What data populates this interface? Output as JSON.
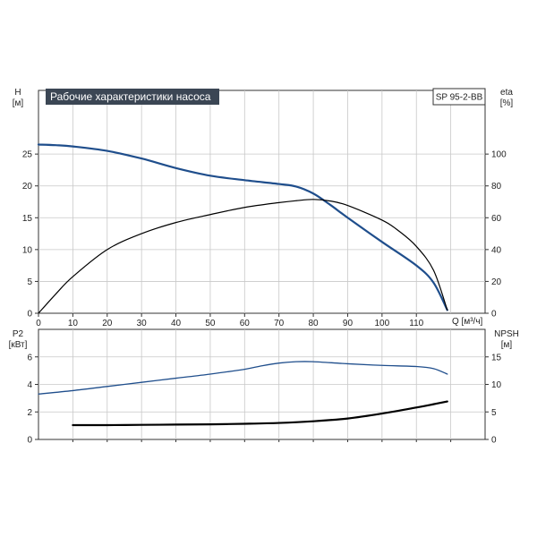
{
  "chart_data": [
    {
      "type": "line",
      "title": "Рабочие характеристики насоса",
      "model": "SP 95-2-BB",
      "x_label": "Q [м³/ч]",
      "x_ticks": [
        "0",
        "10",
        "20",
        "30",
        "40",
        "50",
        "60",
        "70",
        "80",
        "90",
        "100",
        "110"
      ],
      "xlim": [
        0,
        130
      ],
      "y_left_label": "H",
      "y_left_unit": "[м]",
      "y_left_ticks": [
        "0",
        "5",
        "10",
        "15",
        "20",
        "25"
      ],
      "y_left_lim": [
        0,
        35
      ],
      "y_right_label": "eta",
      "y_right_unit": "[%]",
      "y_right_ticks": [
        "0",
        "20",
        "40",
        "60",
        "80",
        "100"
      ],
      "y_right_lim": [
        0,
        140
      ],
      "grid": true,
      "series": [
        {
          "axis": "left",
          "color": "#1f4e8c",
          "x": [
            0,
            5,
            10,
            20,
            30,
            40,
            50,
            60,
            70,
            75,
            80,
            85,
            90,
            100,
            110,
            115,
            119
          ],
          "y": [
            26.5,
            26.4,
            26.2,
            25.5,
            24.3,
            22.8,
            21.6,
            20.9,
            20.3,
            19.9,
            18.8,
            17.0,
            15.0,
            11.2,
            7.5,
            4.8,
            0.5
          ]
        },
        {
          "axis": "right",
          "color": "#000000",
          "x": [
            0,
            5,
            10,
            20,
            30,
            40,
            50,
            60,
            70,
            75,
            80,
            85,
            90,
            100,
            105,
            110,
            115,
            119
          ],
          "y": [
            0,
            12,
            23,
            40,
            50,
            57,
            62,
            66.5,
            69.5,
            70.7,
            71.5,
            70.5,
            67.7,
            58.5,
            51.5,
            42,
            27,
            2
          ]
        }
      ]
    },
    {
      "type": "line",
      "x_label": "",
      "x_ticks": [],
      "xlim": [
        0,
        130
      ],
      "y_left_label": "P2",
      "y_left_unit": "[кВт]",
      "y_left_ticks": [
        "0",
        "2",
        "4",
        "6"
      ],
      "y_left_lim": [
        0,
        8
      ],
      "y_right_label": "NPSH",
      "y_right_unit": "[м]",
      "y_right_ticks": [
        "0",
        "5",
        "10",
        "15"
      ],
      "y_right_lim": [
        0,
        20
      ],
      "grid": true,
      "series": [
        {
          "axis": "left",
          "color": "#1f4e8c",
          "x": [
            0,
            10,
            20,
            30,
            40,
            50,
            60,
            65,
            70,
            75,
            80,
            90,
            100,
            110,
            115,
            119
          ],
          "y": [
            3.3,
            3.55,
            3.85,
            4.15,
            4.45,
            4.75,
            5.1,
            5.35,
            5.55,
            5.65,
            5.65,
            5.5,
            5.38,
            5.3,
            5.15,
            4.75
          ]
        },
        {
          "axis": "right",
          "color": "#000000",
          "x": [
            10,
            20,
            30,
            40,
            50,
            60,
            70,
            80,
            90,
            100,
            110,
            115,
            119
          ],
          "y": [
            2.6,
            2.6,
            2.65,
            2.7,
            2.75,
            2.85,
            3.0,
            3.3,
            3.8,
            4.7,
            5.8,
            6.4,
            6.9
          ]
        }
      ]
    }
  ]
}
